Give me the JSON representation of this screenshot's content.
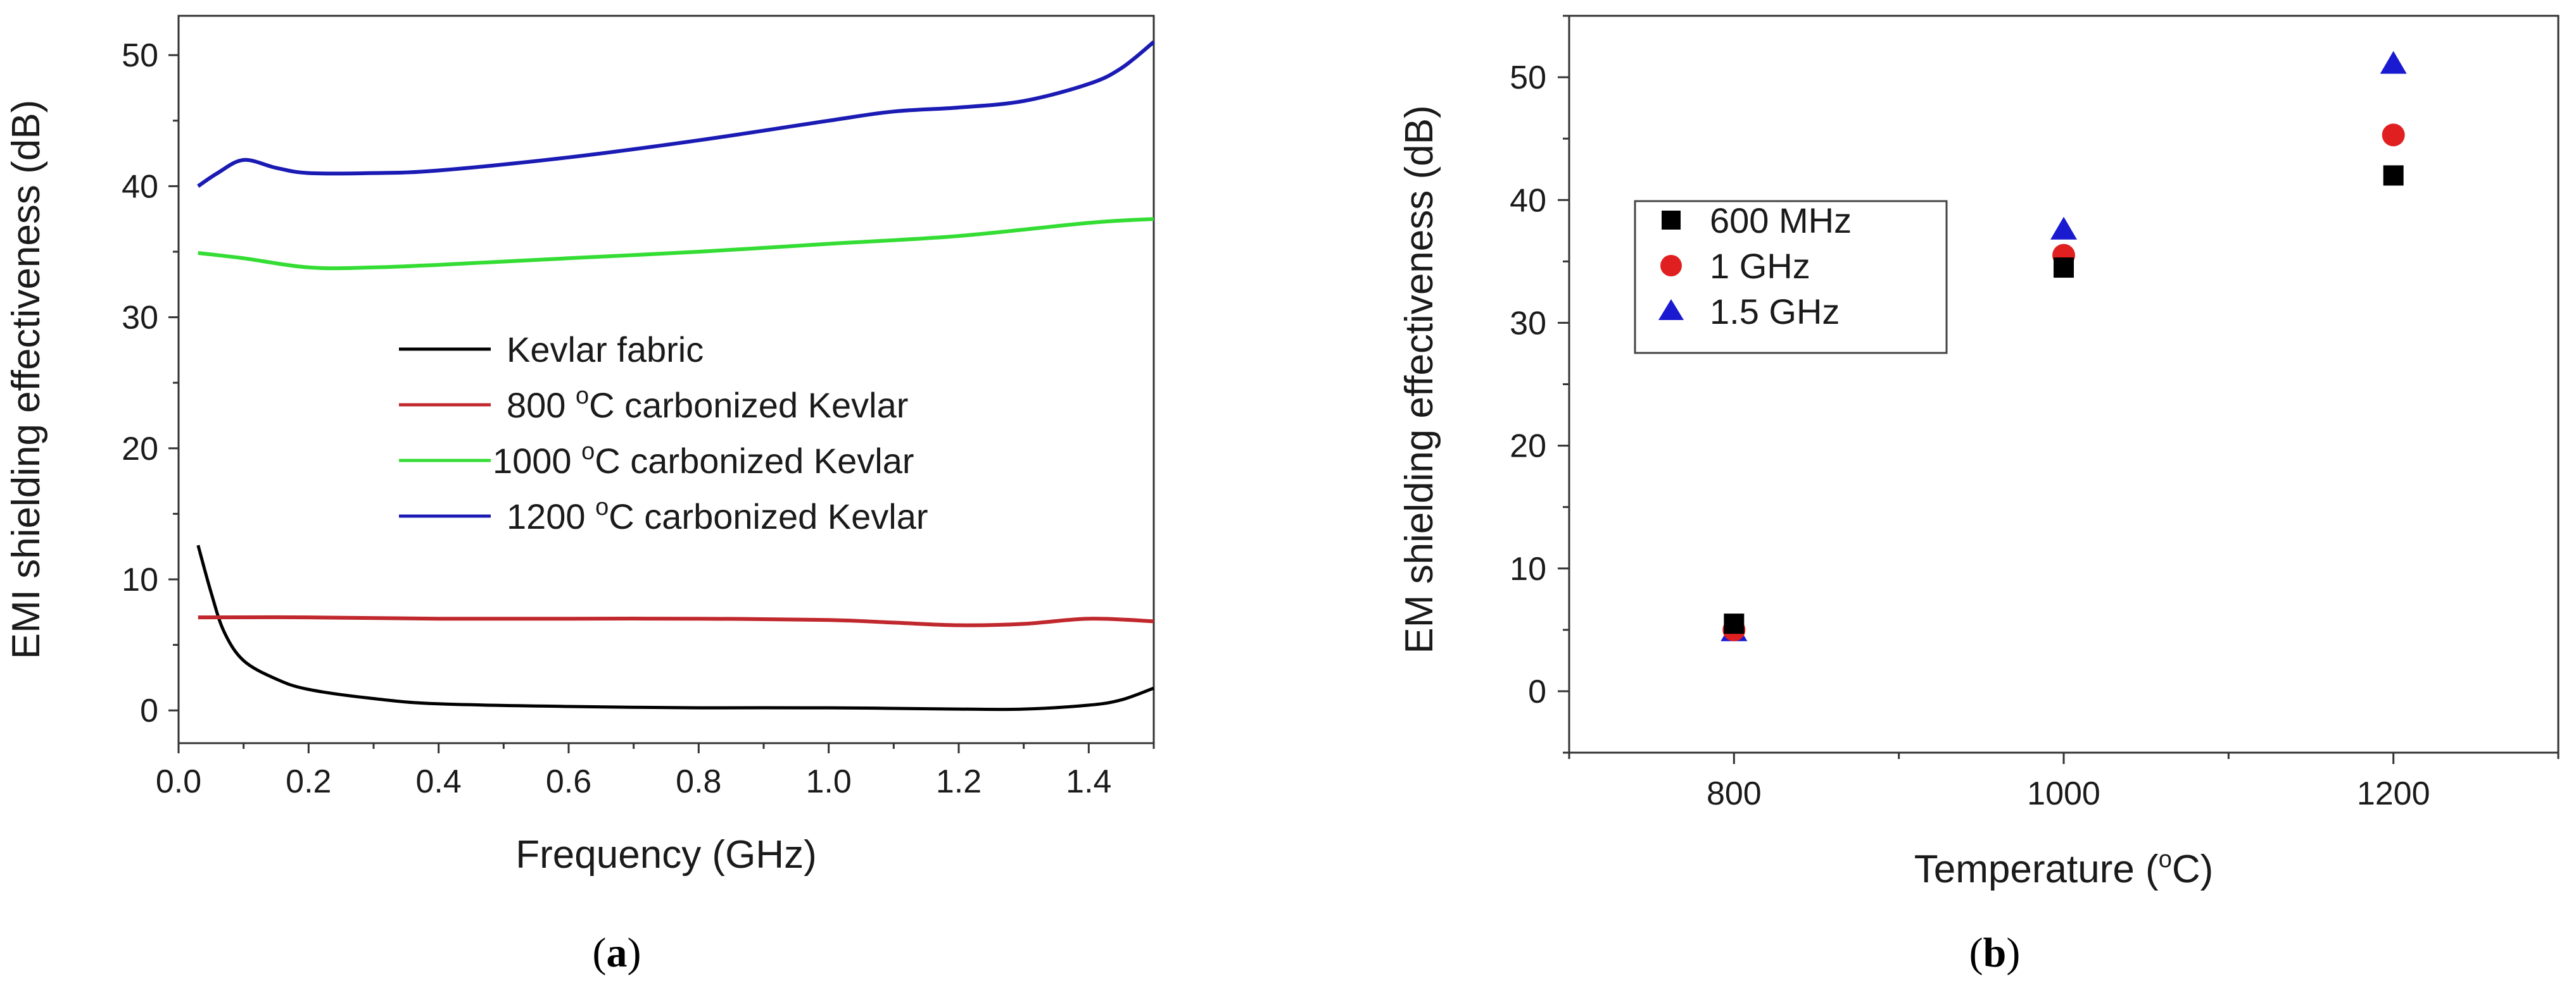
{
  "chart_data": [
    {
      "type": "line",
      "panel": "a",
      "caption_letter": "a",
      "xlabel": "Frequency (GHz)",
      "ylabel": "EMI shielding effectiveness (dB)",
      "xlim": [
        0.0,
        1.5
      ],
      "ylim": [
        -2.5,
        53
      ],
      "x_ticks": [
        0.0,
        0.2,
        0.4,
        0.6,
        0.8,
        1.0,
        1.2,
        1.4
      ],
      "x_tick_labels": [
        "0.0",
        "0.2",
        "0.4",
        "0.6",
        "0.8",
        "1.0",
        "1.2",
        "1.4"
      ],
      "y_ticks": [
        0,
        10,
        20,
        30,
        40,
        50
      ],
      "y_tick_labels": [
        "0",
        "10",
        "20",
        "30",
        "40",
        "50"
      ],
      "legend_position": "center",
      "series": [
        {
          "name": "Kevlar fabric",
          "legend_prefix": "",
          "legend_sup": "",
          "legend_suffix": "Kevlar fabric",
          "color": "#000000",
          "x": [
            0.03,
            0.05,
            0.07,
            0.1,
            0.15,
            0.2,
            0.3,
            0.4,
            0.6,
            0.8,
            1.0,
            1.2,
            1.3,
            1.4,
            1.45,
            1.5
          ],
          "y": [
            12.6,
            9.0,
            6.0,
            3.8,
            2.4,
            1.6,
            0.9,
            0.5,
            0.3,
            0.2,
            0.2,
            0.1,
            0.1,
            0.4,
            0.8,
            1.7
          ]
        },
        {
          "name": "800 °C carbonized Kevlar",
          "legend_prefix": "800 ",
          "legend_sup": "o",
          "legend_suffix": "C carbonized Kevlar",
          "color": "#c0282d",
          "x": [
            0.03,
            0.2,
            0.4,
            0.6,
            0.8,
            1.0,
            1.1,
            1.2,
            1.3,
            1.4,
            1.5
          ],
          "y": [
            7.1,
            7.1,
            7.0,
            7.0,
            7.0,
            6.9,
            6.7,
            6.5,
            6.6,
            7.0,
            6.8
          ]
        },
        {
          "name": "1000 °C carbonized Kevlar",
          "legend_prefix": "1000 ",
          "legend_sup": "o",
          "legend_suffix": "C carbonized Kevlar",
          "color": "#33dd33",
          "x": [
            0.03,
            0.1,
            0.2,
            0.3,
            0.4,
            0.6,
            0.8,
            1.0,
            1.2,
            1.4,
            1.5
          ],
          "y": [
            34.9,
            34.5,
            33.8,
            33.8,
            34.0,
            34.5,
            35.0,
            35.6,
            36.2,
            37.2,
            37.5
          ]
        },
        {
          "name": "1200 °C carbonized Kevlar",
          "legend_prefix": "1200 ",
          "legend_sup": "o",
          "legend_suffix": "C carbonized Kevlar",
          "color": "#1a1ab4",
          "x": [
            0.03,
            0.06,
            0.1,
            0.15,
            0.2,
            0.3,
            0.4,
            0.6,
            0.8,
            1.0,
            1.1,
            1.2,
            1.3,
            1.4,
            1.45,
            1.5
          ],
          "y": [
            40.0,
            41.0,
            42.0,
            41.4,
            41.0,
            41.0,
            41.2,
            42.2,
            43.5,
            45.0,
            45.7,
            46.0,
            46.5,
            47.8,
            49.0,
            51.0
          ]
        }
      ]
    },
    {
      "type": "scatter",
      "panel": "b",
      "caption_letter": "b",
      "xlabel_prefix": "Temperature (",
      "xlabel_sup": "o",
      "xlabel_suffix": "C)",
      "ylabel": "EM shielding effectiveness (dB)",
      "xlim": [
        700,
        1300
      ],
      "ylim": [
        -5,
        55
      ],
      "x_ticks": [
        800,
        1000,
        1200
      ],
      "x_tick_labels": [
        "800",
        "1000",
        "1200"
      ],
      "x_minor_ticks": [
        700,
        900,
        1100,
        1300
      ],
      "y_ticks": [
        0,
        10,
        20,
        30,
        40,
        50
      ],
      "y_tick_labels": [
        "0",
        "10",
        "20",
        "30",
        "40",
        "50"
      ],
      "legend_position": "upper-left",
      "series": [
        {
          "name": "600 MHz",
          "marker": "square",
          "color": "#000000",
          "x": [
            800,
            1000,
            1200
          ],
          "y": [
            5.5,
            34.5,
            42.0
          ]
        },
        {
          "name": "1 GHz",
          "marker": "circle",
          "color": "#e02020",
          "x": [
            800,
            1000,
            1200
          ],
          "y": [
            5.0,
            35.5,
            45.3
          ]
        },
        {
          "name": "1.5 GHz",
          "marker": "triangle",
          "color": "#1a1ad0",
          "x": [
            800,
            1000,
            1200
          ],
          "y": [
            4.8,
            37.5,
            51.0
          ]
        }
      ]
    }
  ]
}
